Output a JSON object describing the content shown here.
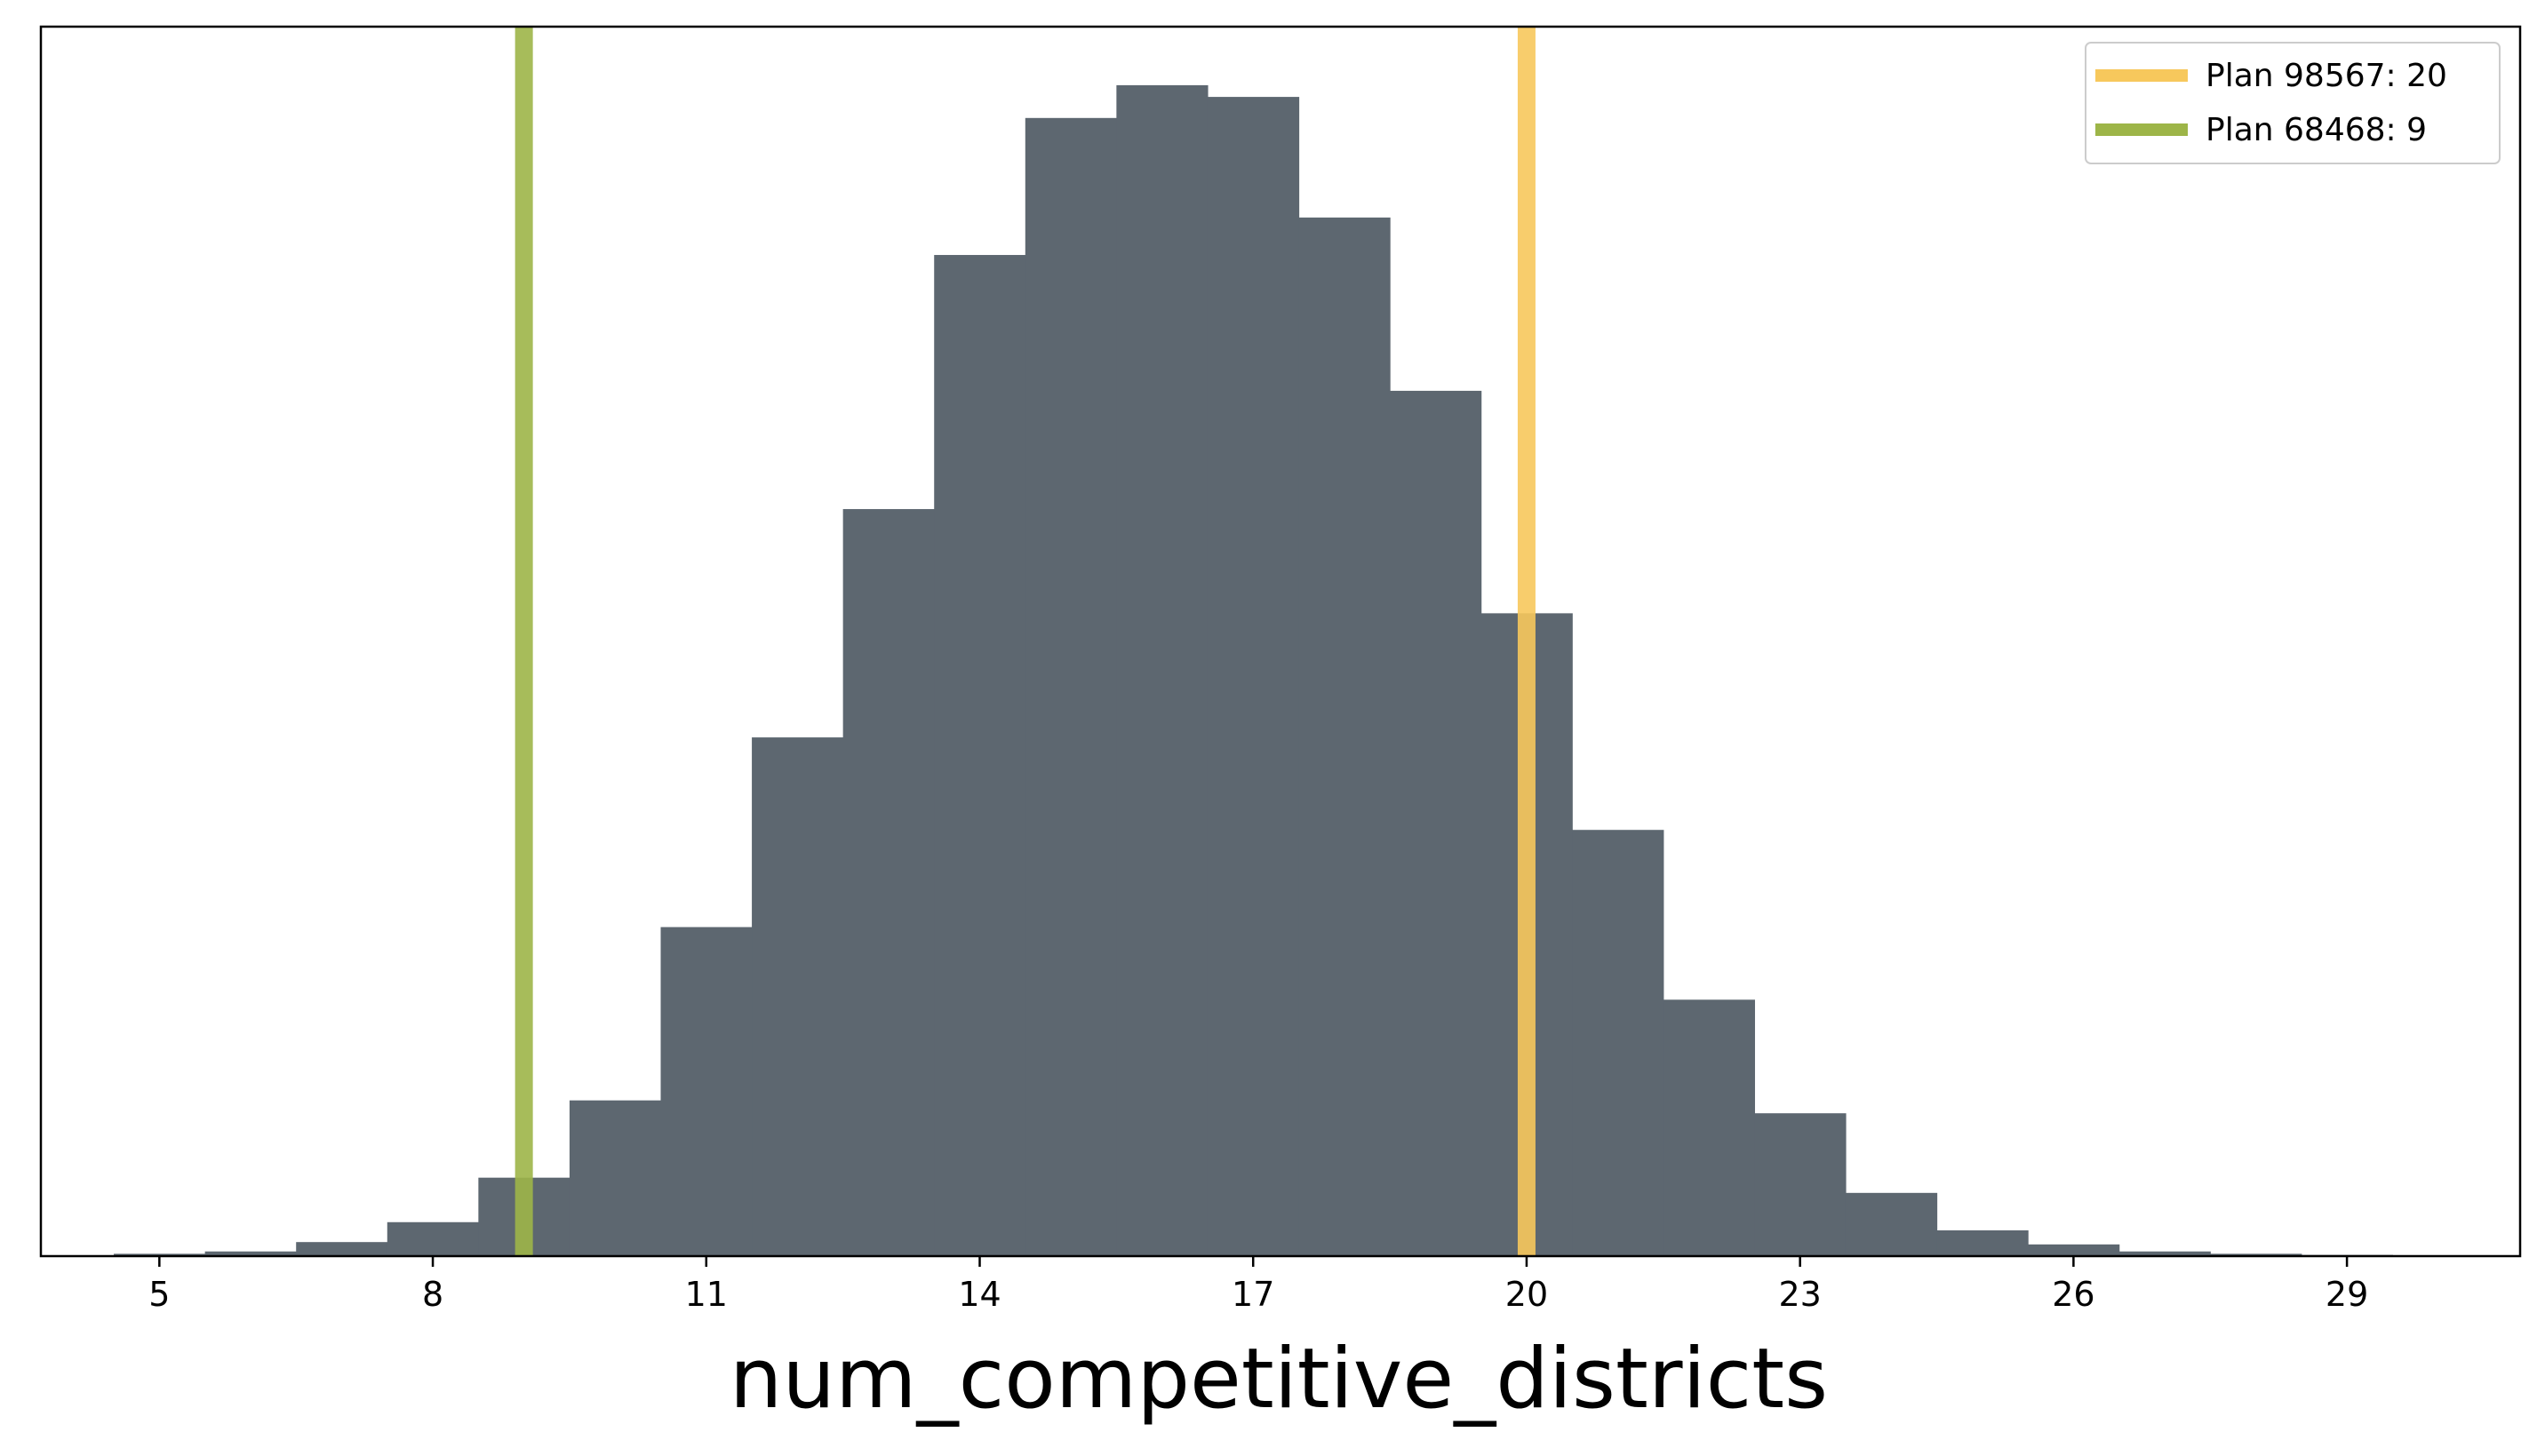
{
  "chart_data": {
    "type": "bar",
    "subtype": "histogram",
    "title": "",
    "xlabel": "num_competitive_districts",
    "ylabel": "",
    "y_axis_visible": false,
    "xlim": [
      3.7,
      30.9
    ],
    "ylim": [
      0,
      1.05
    ],
    "xticks": [
      5,
      8,
      11,
      14,
      17,
      20,
      23,
      26,
      29
    ],
    "xtick_labels": [
      "5",
      "8",
      "11",
      "14",
      "17",
      "20",
      "23",
      "26",
      "29"
    ],
    "grid": false,
    "bar_color": "#5d6770",
    "bins": [
      {
        "x": 5,
        "value": 0.002
      },
      {
        "x": 6,
        "value": 0.004
      },
      {
        "x": 7,
        "value": 0.012
      },
      {
        "x": 8,
        "value": 0.029
      },
      {
        "x": 9,
        "value": 0.067
      },
      {
        "x": 10,
        "value": 0.133
      },
      {
        "x": 11,
        "value": 0.281
      },
      {
        "x": 12,
        "value": 0.443
      },
      {
        "x": 13,
        "value": 0.638
      },
      {
        "x": 14,
        "value": 0.855
      },
      {
        "x": 15,
        "value": 0.972
      },
      {
        "x": 16,
        "value": 1.0
      },
      {
        "x": 17,
        "value": 0.99
      },
      {
        "x": 18,
        "value": 0.887
      },
      {
        "x": 19,
        "value": 0.739
      },
      {
        "x": 20,
        "value": 0.549
      },
      {
        "x": 21,
        "value": 0.364
      },
      {
        "x": 22,
        "value": 0.219
      },
      {
        "x": 23,
        "value": 0.122
      },
      {
        "x": 24,
        "value": 0.054
      },
      {
        "x": 25,
        "value": 0.022
      },
      {
        "x": 26,
        "value": 0.01
      },
      {
        "x": 27,
        "value": 0.004
      },
      {
        "x": 28,
        "value": 0.002
      },
      {
        "x": 29,
        "value": 0.001
      }
    ],
    "reference_lines": [
      {
        "name": "Plan 98567: 20",
        "x": 20,
        "color": "#f7c85c"
      },
      {
        "name": "Plan 68468: 9",
        "x": 9,
        "color": "#9db548"
      }
    ],
    "legend": {
      "placement": "top-right",
      "entries": [
        "Plan 98567: 20",
        "Plan 68468: 9"
      ]
    }
  }
}
